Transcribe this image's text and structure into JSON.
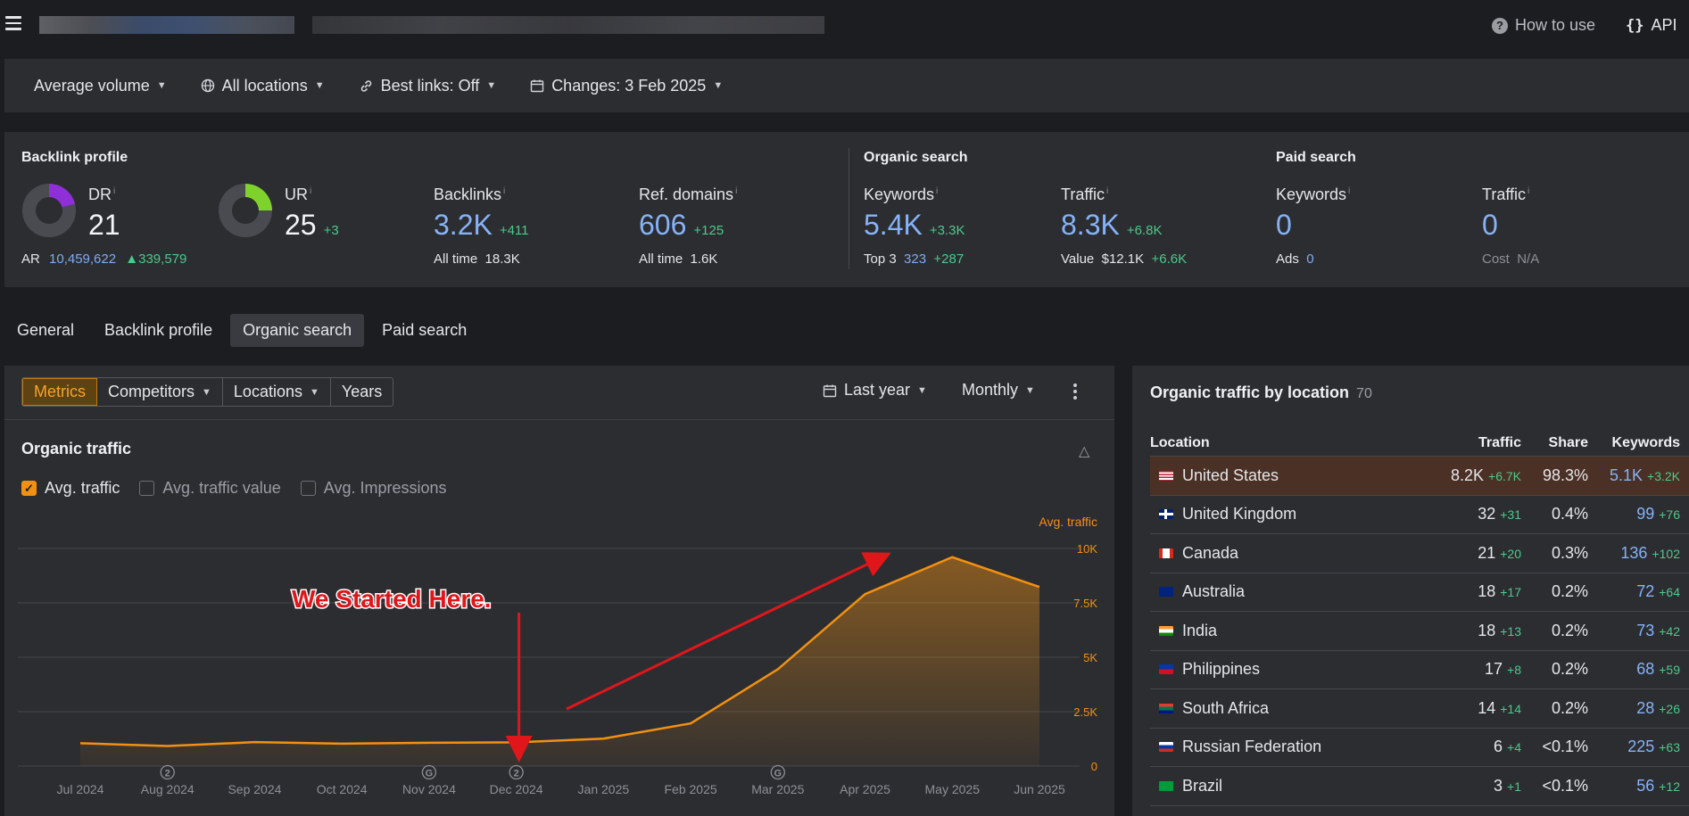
{
  "topbar": {
    "how_to_use": "How to use",
    "api": "API"
  },
  "filters": [
    {
      "label": "Average volume",
      "icon": "none"
    },
    {
      "label": "All locations",
      "icon": "globe-icon"
    },
    {
      "label": "Best links: Off",
      "icon": "link-icon"
    },
    {
      "label": "Changes: 3 Feb 2025",
      "icon": "calendar-icon"
    }
  ],
  "backlink_profile": {
    "title": "Backlink profile",
    "dr": {
      "label": "DR",
      "value": "21"
    },
    "ar": {
      "label": "AR",
      "value": "10,459,622",
      "delta": "339,579"
    },
    "ur": {
      "label": "UR",
      "value": "25",
      "delta": "+3"
    },
    "backlinks": {
      "label": "Backlinks",
      "value": "3.2K",
      "delta": "+411",
      "sub_label": "All time",
      "sub_value": "18.3K"
    },
    "ref_domains": {
      "label": "Ref. domains",
      "value": "606",
      "delta": "+125",
      "sub_label": "All time",
      "sub_value": "1.6K"
    }
  },
  "organic_search": {
    "title": "Organic search",
    "keywords": {
      "label": "Keywords",
      "value": "5.4K",
      "delta": "+3.3K",
      "sub_label": "Top 3",
      "sub_value": "323",
      "sub_delta": "+287"
    },
    "traffic": {
      "label": "Traffic",
      "value": "8.3K",
      "delta": "+6.8K",
      "sub_label": "Value",
      "sub_value": "$12.1K",
      "sub_delta": "+6.6K"
    }
  },
  "paid_search": {
    "title": "Paid search",
    "keywords": {
      "label": "Keywords",
      "value": "0",
      "sub_label": "Ads",
      "sub_value": "0"
    },
    "traffic": {
      "label": "Traffic",
      "value": "0",
      "sub_label": "Cost",
      "sub_value": "N/A"
    }
  },
  "tabs": [
    "General",
    "Backlink profile",
    "Organic search",
    "Paid search"
  ],
  "chart_toolbar": {
    "segments": [
      "Metrics",
      "Competitors",
      "Locations",
      "Years"
    ],
    "period": "Last year",
    "interval": "Monthly"
  },
  "organic_traffic": {
    "title": "Organic traffic",
    "checkboxes": [
      {
        "label": "Avg. traffic",
        "checked": true
      },
      {
        "label": "Avg. traffic value",
        "checked": false
      },
      {
        "label": "Avg. Impressions",
        "checked": false
      }
    ],
    "annotation": "We Started Here."
  },
  "chart_data": {
    "type": "area",
    "series": [
      {
        "name": "Avg. traffic",
        "color": "#f29111",
        "values": [
          1050,
          920,
          1100,
          1030,
          1070,
          1090,
          1260,
          1960,
          4450,
          7900,
          9600,
          8230
        ]
      }
    ],
    "categories": [
      "Jul 2024",
      "Aug 2024",
      "Sep 2024",
      "Oct 2024",
      "Nov 2024",
      "Dec 2024",
      "Jan 2025",
      "Feb 2025",
      "Mar 2025",
      "Apr 2025",
      "May 2025",
      "Jun 2025"
    ],
    "ylabel": "Avg. traffic",
    "yticks": [
      "0",
      "2.5K",
      "5K",
      "7.5K",
      "10K"
    ],
    "ylim": [
      0,
      10000
    ],
    "grid": true,
    "event_markers": [
      {
        "month": "Aug 2024",
        "label": "2"
      },
      {
        "month": "Nov 2024",
        "label": "G"
      },
      {
        "month": "Dec 2024",
        "label": "2"
      },
      {
        "month": "Mar 2025",
        "label": "G"
      }
    ]
  },
  "locations": {
    "title": "Organic traffic by location",
    "count": "70",
    "headers": [
      "Location",
      "Traffic",
      "Share",
      "Keywords"
    ],
    "rows": [
      {
        "country": "United States",
        "flag": "us",
        "traffic": "8.2K",
        "traffic_delta": "+6.7K",
        "share": "98.3%",
        "keywords": "5.1K",
        "kw_delta": "+3.2K"
      },
      {
        "country": "United Kingdom",
        "flag": "uk",
        "traffic": "32",
        "traffic_delta": "+31",
        "share": "0.4%",
        "keywords": "99",
        "kw_delta": "+76"
      },
      {
        "country": "Canada",
        "flag": "ca",
        "traffic": "21",
        "traffic_delta": "+20",
        "share": "0.3%",
        "keywords": "136",
        "kw_delta": "+102"
      },
      {
        "country": "Australia",
        "flag": "au",
        "traffic": "18",
        "traffic_delta": "+17",
        "share": "0.2%",
        "keywords": "72",
        "kw_delta": "+64"
      },
      {
        "country": "India",
        "flag": "in",
        "traffic": "18",
        "traffic_delta": "+13",
        "share": "0.2%",
        "keywords": "73",
        "kw_delta": "+42"
      },
      {
        "country": "Philippines",
        "flag": "ph",
        "traffic": "17",
        "traffic_delta": "+8",
        "share": "0.2%",
        "keywords": "68",
        "kw_delta": "+59"
      },
      {
        "country": "South Africa",
        "flag": "za",
        "traffic": "14",
        "traffic_delta": "+14",
        "share": "0.2%",
        "keywords": "28",
        "kw_delta": "+26"
      },
      {
        "country": "Russian Federation",
        "flag": "ru",
        "traffic": "6",
        "traffic_delta": "+4",
        "share": "<0.1%",
        "keywords": "225",
        "kw_delta": "+63"
      },
      {
        "country": "Brazil",
        "flag": "br",
        "traffic": "3",
        "traffic_delta": "+1",
        "share": "<0.1%",
        "keywords": "56",
        "kw_delta": "+12"
      }
    ]
  }
}
